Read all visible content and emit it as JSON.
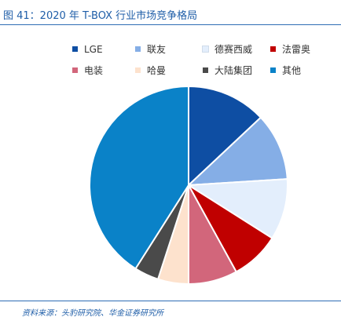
{
  "title": "图 41：2020 年 T-BOX 行业市场竞争格局",
  "source": "资料来源：头豹研究院、华金证券研究所",
  "colors": {
    "title": "#1f5ea8",
    "rule": "#2e6db4",
    "slice_border": "#ffffff"
  },
  "chart_data": {
    "type": "pie",
    "title": "",
    "legend_position": "top",
    "start_angle": "12 o'clock",
    "direction": "clockwise",
    "unit": "%",
    "slices": [
      {
        "label": "LGE",
        "value": 13.0,
        "color": "#0e4ea3"
      },
      {
        "label": "联友",
        "value": 11.0,
        "color": "#85aee6"
      },
      {
        "label": "德赛西威",
        "value": 10.0,
        "color": "#e3eefc"
      },
      {
        "label": "法雷奥",
        "value": 8.0,
        "color": "#c00000"
      },
      {
        "label": "电装",
        "value": 8.0,
        "color": "#d2667b"
      },
      {
        "label": "哈曼",
        "value": 5.0,
        "color": "#fde2cd"
      },
      {
        "label": "大陆集团",
        "value": 4.0,
        "color": "#4a4a4a"
      },
      {
        "label": "其他",
        "value": 41.0,
        "color": "#0a82c8"
      }
    ]
  }
}
